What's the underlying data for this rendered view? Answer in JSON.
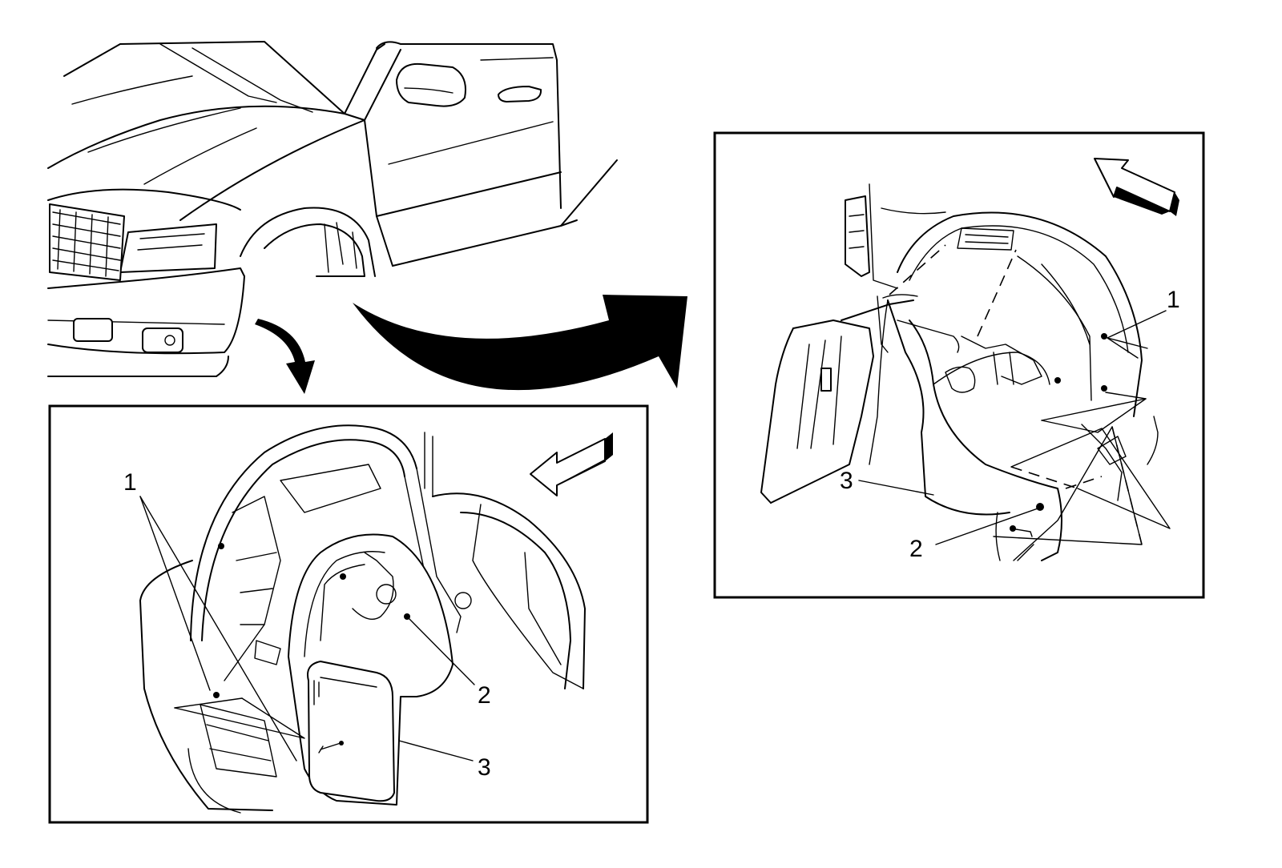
{
  "callouts_lower_view": [
    {
      "label": "1",
      "part": "fastener-pushpin"
    },
    {
      "label": "2",
      "part": "fastener-screw"
    },
    {
      "label": "3",
      "part": "wheelhouse-liner"
    }
  ],
  "callouts_upper_view": [
    {
      "label": "1",
      "part": "fastener-pushpin"
    },
    {
      "label": "2",
      "part": "fastener-screw"
    },
    {
      "label": "3",
      "part": "wheelhouse-liner"
    }
  ],
  "colors": {
    "line": "#000000",
    "background": "#ffffff"
  },
  "icons": {
    "forward_arrow_lower": "direction-arrow-icon",
    "forward_arrow_upper": "direction-arrow-icon",
    "zoom_arrow_small": "curved-pointer-arrow-icon",
    "zoom_arrow_large": "curved-pointer-arrow-icon"
  }
}
